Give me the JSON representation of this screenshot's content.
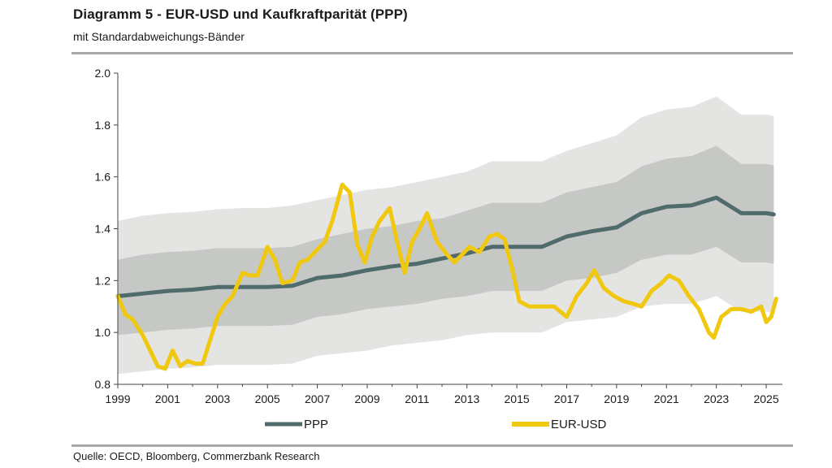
{
  "header": {
    "title": "Diagramm 5 - EUR-USD und Kaufkraftparität (PPP)",
    "subtitle": "mit Standardabweichungs-Bänder"
  },
  "footer": {
    "source": "Quelle: OECD, Bloomberg, Commerzbank Research"
  },
  "colors": {
    "ppp": "#4f6b6b",
    "eurusd": "#f0c810",
    "band_outer": "#e4e5e3",
    "band_inner": "#c6c8c6",
    "axis": "#444444"
  },
  "chart_data": {
    "type": "line",
    "title": "Diagramm 5 - EUR-USD und Kaufkraftparität (PPP)",
    "subtitle": "mit Standardabweichungs-Bänder",
    "xlim": [
      1999,
      2025.5
    ],
    "ylim": [
      0.8,
      2.0
    ],
    "x_ticks": [
      "1999",
      "2001",
      "2003",
      "2005",
      "2007",
      "2009",
      "2011",
      "2013",
      "2015",
      "2017",
      "2019",
      "2021",
      "2023",
      "2025"
    ],
    "y_ticks": [
      "0.8",
      "1.0",
      "1.2",
      "1.4",
      "1.6",
      "1.8",
      "2.0"
    ],
    "grid": false,
    "legend": "bottom",
    "series": [
      {
        "name": "PPP",
        "x": [
          1999,
          2000,
          2001,
          2002,
          2003,
          2004,
          2005,
          2006,
          2007,
          2008,
          2009,
          2010,
          2011,
          2012,
          2013,
          2014,
          2015,
          2016,
          2017,
          2018,
          2019,
          2020,
          2021,
          2022,
          2023,
          2024,
          2025,
          2025.3
        ],
        "values": [
          1.14,
          1.15,
          1.16,
          1.165,
          1.175,
          1.175,
          1.175,
          1.18,
          1.21,
          1.22,
          1.24,
          1.255,
          1.265,
          1.285,
          1.305,
          1.33,
          1.33,
          1.33,
          1.37,
          1.39,
          1.405,
          1.46,
          1.485,
          1.49,
          1.52,
          1.46,
          1.46,
          1.455
        ]
      },
      {
        "name": "EUR-USD",
        "x": [
          1999,
          1999.3,
          1999.6,
          2000,
          2000.3,
          2000.6,
          2000.9,
          2001.2,
          2001.5,
          2001.8,
          2002.1,
          2002.4,
          2002.7,
          2003,
          2003.3,
          2003.6,
          2004,
          2004.3,
          2004.6,
          2005,
          2005.3,
          2005.6,
          2006,
          2006.3,
          2006.6,
          2007,
          2007.3,
          2007.6,
          2008,
          2008.3,
          2008.6,
          2008.9,
          2009.2,
          2009.5,
          2009.9,
          2010.2,
          2010.5,
          2010.8,
          2011.1,
          2011.4,
          2011.8,
          2012.2,
          2012.5,
          2012.8,
          2013.1,
          2013.5,
          2013.9,
          2014.2,
          2014.5,
          2014.8,
          2015.1,
          2015.5,
          2016,
          2016.5,
          2017,
          2017.4,
          2017.8,
          2018.1,
          2018.5,
          2018.9,
          2019.3,
          2019.7,
          2020,
          2020.4,
          2020.8,
          2021.1,
          2021.5,
          2021.9,
          2022.3,
          2022.7,
          2022.9,
          2023.2,
          2023.6,
          2024,
          2024.4,
          2024.8,
          2025,
          2025.2,
          2025.4
        ],
        "values": [
          1.14,
          1.07,
          1.05,
          0.99,
          0.93,
          0.87,
          0.86,
          0.93,
          0.87,
          0.89,
          0.88,
          0.88,
          0.97,
          1.06,
          1.11,
          1.14,
          1.23,
          1.22,
          1.22,
          1.33,
          1.28,
          1.19,
          1.2,
          1.27,
          1.28,
          1.32,
          1.35,
          1.43,
          1.57,
          1.54,
          1.34,
          1.27,
          1.37,
          1.43,
          1.48,
          1.35,
          1.23,
          1.35,
          1.4,
          1.46,
          1.35,
          1.3,
          1.27,
          1.3,
          1.33,
          1.31,
          1.37,
          1.38,
          1.36,
          1.25,
          1.12,
          1.1,
          1.1,
          1.1,
          1.06,
          1.14,
          1.19,
          1.24,
          1.17,
          1.14,
          1.12,
          1.11,
          1.1,
          1.16,
          1.19,
          1.22,
          1.2,
          1.14,
          1.09,
          1.0,
          0.98,
          1.06,
          1.09,
          1.09,
          1.08,
          1.1,
          1.04,
          1.06,
          1.13
        ]
      }
    ],
    "bands": {
      "x": [
        1999,
        2000,
        2001,
        2002,
        2003,
        2004,
        2005,
        2006,
        2007,
        2008,
        2009,
        2010,
        2011,
        2012,
        2013,
        2014,
        2015,
        2016,
        2017,
        2018,
        2019,
        2020,
        2021,
        2022,
        2023,
        2024,
        2025,
        2025.3
      ],
      "outer_upper": [
        1.43,
        1.45,
        1.46,
        1.465,
        1.475,
        1.48,
        1.48,
        1.49,
        1.51,
        1.53,
        1.55,
        1.56,
        1.58,
        1.6,
        1.62,
        1.66,
        1.66,
        1.66,
        1.7,
        1.73,
        1.76,
        1.83,
        1.86,
        1.87,
        1.91,
        1.84,
        1.84,
        1.835
      ],
      "inner_upper": [
        1.28,
        1.3,
        1.31,
        1.315,
        1.325,
        1.325,
        1.325,
        1.33,
        1.36,
        1.38,
        1.4,
        1.41,
        1.43,
        1.44,
        1.47,
        1.5,
        1.5,
        1.5,
        1.54,
        1.56,
        1.58,
        1.64,
        1.67,
        1.68,
        1.72,
        1.65,
        1.65,
        1.645
      ],
      "inner_lower": [
        0.99,
        1.0,
        1.01,
        1.015,
        1.025,
        1.025,
        1.025,
        1.03,
        1.06,
        1.07,
        1.09,
        1.1,
        1.11,
        1.13,
        1.14,
        1.16,
        1.16,
        1.16,
        1.2,
        1.21,
        1.23,
        1.28,
        1.3,
        1.3,
        1.33,
        1.27,
        1.27,
        1.265
      ],
      "outer_lower": [
        0.84,
        0.85,
        0.86,
        0.865,
        0.875,
        0.875,
        0.875,
        0.88,
        0.91,
        0.92,
        0.93,
        0.95,
        0.96,
        0.97,
        0.99,
        1.0,
        1.0,
        1.0,
        1.04,
        1.05,
        1.06,
        1.1,
        1.11,
        1.11,
        1.14,
        1.08,
        1.08,
        1.075
      ]
    }
  }
}
